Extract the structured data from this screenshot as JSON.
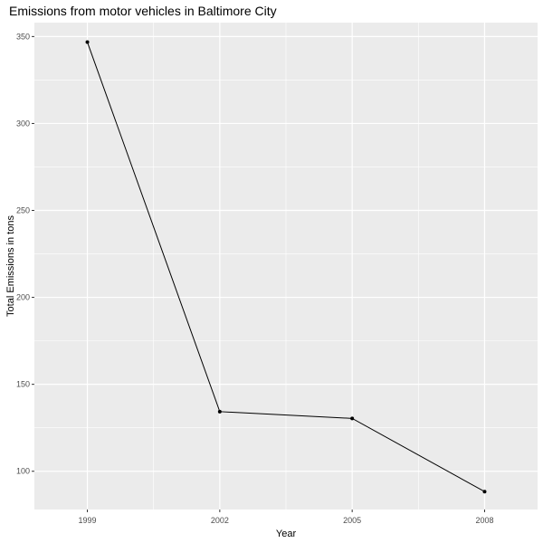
{
  "chart_data": {
    "type": "line",
    "title": "Emissions from motor vehicles in Baltimore City",
    "xlabel": "Year",
    "ylabel": "Total Emissions in tons",
    "x": [
      1999,
      2002,
      2005,
      2008
    ],
    "series": [
      {
        "values": [
          346.8,
          134.3,
          130.4,
          88.3
        ]
      }
    ],
    "x_ticks": [
      "1999",
      "2002",
      "2005",
      "2008"
    ],
    "y_ticks": [
      100,
      150,
      200,
      250,
      300,
      350
    ],
    "xlim": [
      1997.8,
      2009.2
    ],
    "ylim": [
      78,
      358
    ],
    "grid": true,
    "legend": "none",
    "colors": {
      "panel": "#ebebeb",
      "grid": "#ffffff",
      "line": "#000000",
      "tick_text": "#4d4d4d",
      "tick_mark": "#333333"
    }
  }
}
